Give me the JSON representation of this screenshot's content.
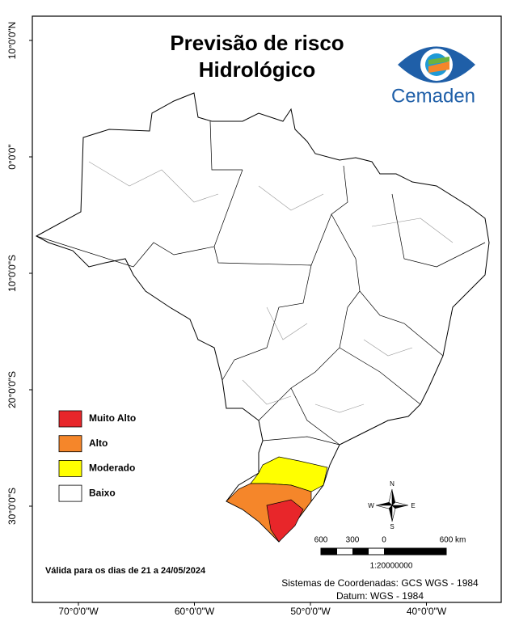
{
  "title": [
    "Previsão de risco",
    "Hidrológico"
  ],
  "logo": "Cemaden",
  "legend": [
    {
      "label": "Muito Alto",
      "color": "#e8262a"
    },
    {
      "label": "Alto",
      "color": "#f5862a"
    },
    {
      "label": "Moderado",
      "color": "#ffff00"
    },
    {
      "label": "Baixo",
      "color": "#ffffff"
    }
  ],
  "validity": "Válida para os dias de 21 a 24/05/2024",
  "latitude_labels": [
    "10°0'0\"N",
    "0°0'0\"",
    "10°0'0\"S",
    "20°0'0\"S",
    "30°0'0\"S"
  ],
  "longitude_labels": [
    "70°0'0\"W",
    "60°0'0\"W",
    "50°0'0\"W",
    "40°0'0\"W"
  ],
  "compass": [
    "N",
    "E",
    "S",
    "W"
  ],
  "scale": {
    "labels": [
      "600",
      "300",
      "0",
      "600 km"
    ],
    "ratio": "1:20000000"
  },
  "coordinate_system": "Sistemas de Coordenadas: GCS WGS - 1984",
  "datum": "Datum: WGS - 1984"
}
